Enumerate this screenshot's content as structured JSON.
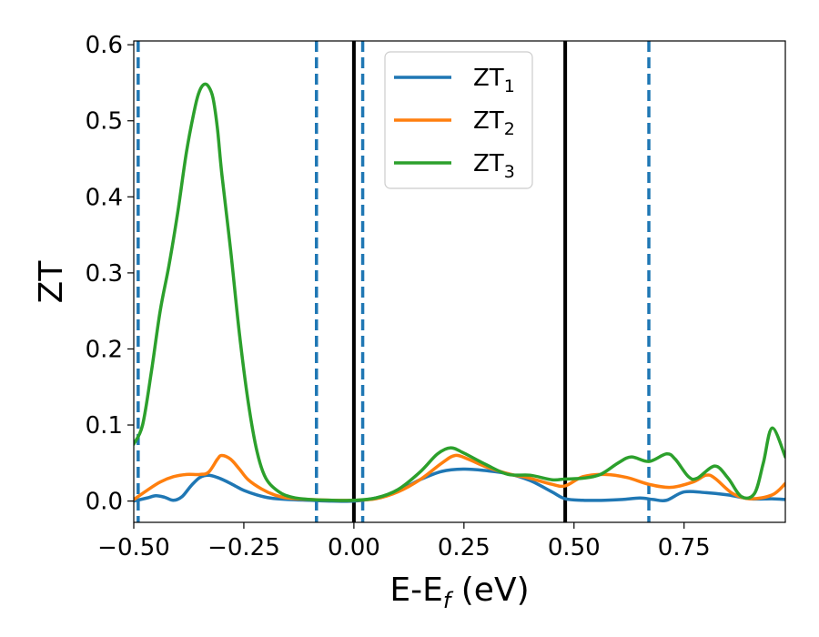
{
  "chart_data": {
    "type": "line",
    "xlabel": "E-E",
    "xlabel_sub": "f",
    "xlabel_unit": " (eV)",
    "ylabel": "ZT",
    "xlim": [
      -0.5,
      0.98
    ],
    "ylim": [
      -0.028,
      0.605
    ],
    "grid": false,
    "legend_position": "top-center",
    "x_ticks": [
      -0.5,
      -0.25,
      0.0,
      0.25,
      0.5,
      0.75
    ],
    "x_tick_labels": [
      "−0.50",
      "−0.25",
      "0.00",
      "0.25",
      "0.50",
      "0.75"
    ],
    "y_ticks": [
      0.0,
      0.1,
      0.2,
      0.3,
      0.4,
      0.5,
      0.6
    ],
    "y_tick_labels": [
      "0.0",
      "0.1",
      "0.2",
      "0.3",
      "0.4",
      "0.5",
      "0.6"
    ],
    "vertical_lines": [
      {
        "x": -0.49,
        "style": "dashed",
        "color": "#1f77b4"
      },
      {
        "x": -0.085,
        "style": "dashed",
        "color": "#1f77b4"
      },
      {
        "x": 0.02,
        "style": "dashed",
        "color": "#1f77b4"
      },
      {
        "x": 0.67,
        "style": "dashed",
        "color": "#1f77b4"
      },
      {
        "x": 0.0,
        "style": "solid",
        "color": "#000000"
      },
      {
        "x": 0.48,
        "style": "solid",
        "color": "#000000"
      }
    ],
    "series": [
      {
        "name": "ZT",
        "name_sub": "1",
        "color": "#1f77b4",
        "x": [
          -0.5,
          -0.47,
          -0.45,
          -0.43,
          -0.41,
          -0.39,
          -0.37,
          -0.35,
          -0.33,
          -0.31,
          -0.29,
          -0.27,
          -0.25,
          -0.22,
          -0.19,
          -0.15,
          -0.1,
          -0.05,
          0.0,
          0.05,
          0.1,
          0.15,
          0.2,
          0.25,
          0.3,
          0.35,
          0.4,
          0.45,
          0.48,
          0.52,
          0.57,
          0.61,
          0.65,
          0.68,
          0.71,
          0.75,
          0.8,
          0.85,
          0.9,
          0.95,
          0.98
        ],
        "y": [
          0.0,
          0.004,
          0.007,
          0.005,
          0.001,
          0.006,
          0.02,
          0.031,
          0.034,
          0.031,
          0.026,
          0.02,
          0.014,
          0.008,
          0.004,
          0.002,
          0.001,
          0.0,
          0.0,
          0.004,
          0.013,
          0.028,
          0.039,
          0.042,
          0.04,
          0.036,
          0.027,
          0.012,
          0.003,
          0.001,
          0.001,
          0.002,
          0.004,
          0.002,
          0.001,
          0.012,
          0.011,
          0.008,
          0.003,
          0.003,
          0.002
        ]
      },
      {
        "name": "ZT",
        "name_sub": "2",
        "color": "#ff7f0e",
        "x": [
          -0.5,
          -0.47,
          -0.44,
          -0.41,
          -0.38,
          -0.35,
          -0.33,
          -0.31,
          -0.3,
          -0.28,
          -0.26,
          -0.24,
          -0.21,
          -0.18,
          -0.15,
          -0.1,
          -0.05,
          0.0,
          0.05,
          0.1,
          0.15,
          0.2,
          0.23,
          0.26,
          0.3,
          0.35,
          0.4,
          0.45,
          0.48,
          0.52,
          0.57,
          0.62,
          0.67,
          0.72,
          0.77,
          0.8,
          0.82,
          0.86,
          0.9,
          0.95,
          0.98
        ],
        "y": [
          0.002,
          0.014,
          0.025,
          0.032,
          0.035,
          0.035,
          0.038,
          0.055,
          0.06,
          0.055,
          0.042,
          0.028,
          0.016,
          0.008,
          0.004,
          0.002,
          0.001,
          0.001,
          0.003,
          0.012,
          0.028,
          0.05,
          0.06,
          0.055,
          0.045,
          0.036,
          0.03,
          0.022,
          0.02,
          0.032,
          0.035,
          0.031,
          0.022,
          0.018,
          0.025,
          0.034,
          0.03,
          0.01,
          0.003,
          0.008,
          0.023
        ]
      },
      {
        "name": "ZT",
        "name_sub": "3",
        "color": "#2ca02c",
        "x": [
          -0.5,
          -0.48,
          -0.46,
          -0.44,
          -0.42,
          -0.4,
          -0.38,
          -0.36,
          -0.35,
          -0.34,
          -0.33,
          -0.32,
          -0.31,
          -0.3,
          -0.28,
          -0.26,
          -0.24,
          -0.22,
          -0.2,
          -0.17,
          -0.14,
          -0.1,
          -0.05,
          0.0,
          0.05,
          0.1,
          0.15,
          0.19,
          0.22,
          0.25,
          0.3,
          0.35,
          0.4,
          0.45,
          0.48,
          0.52,
          0.56,
          0.6,
          0.63,
          0.67,
          0.71,
          0.73,
          0.76,
          0.78,
          0.82,
          0.85,
          0.88,
          0.91,
          0.93,
          0.95,
          0.98
        ],
        "y": [
          0.075,
          0.1,
          0.17,
          0.25,
          0.31,
          0.38,
          0.46,
          0.52,
          0.54,
          0.548,
          0.545,
          0.53,
          0.49,
          0.43,
          0.33,
          0.22,
          0.13,
          0.065,
          0.03,
          0.012,
          0.005,
          0.002,
          0.001,
          0.001,
          0.004,
          0.015,
          0.038,
          0.062,
          0.07,
          0.063,
          0.048,
          0.035,
          0.034,
          0.028,
          0.029,
          0.03,
          0.035,
          0.05,
          0.058,
          0.052,
          0.062,
          0.055,
          0.032,
          0.03,
          0.046,
          0.03,
          0.006,
          0.01,
          0.05,
          0.096,
          0.058
        ]
      }
    ]
  }
}
